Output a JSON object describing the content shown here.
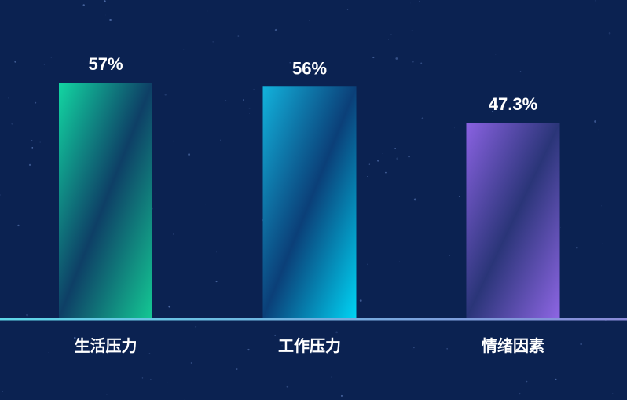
{
  "chart_data": {
    "type": "bar",
    "categories": [
      "生活压力",
      "工作压力",
      "情绪因素"
    ],
    "values": [
      57,
      56,
      47.3
    ],
    "value_labels": [
      "57%",
      "56%",
      "47.3%"
    ],
    "ylim": [
      0,
      57
    ],
    "grid": false,
    "colors": [
      [
        "#12d6a2",
        "#0e3f66",
        "#14c894"
      ],
      [
        "#12b2dc",
        "#0b3f78",
        "#00d4f4"
      ],
      [
        "#8a62e2",
        "#2a3578",
        "#8e66e4"
      ]
    ],
    "baseline_colors": [
      "#5fd8e8",
      "#8a8ad8"
    ],
    "background": "#0b2251"
  }
}
